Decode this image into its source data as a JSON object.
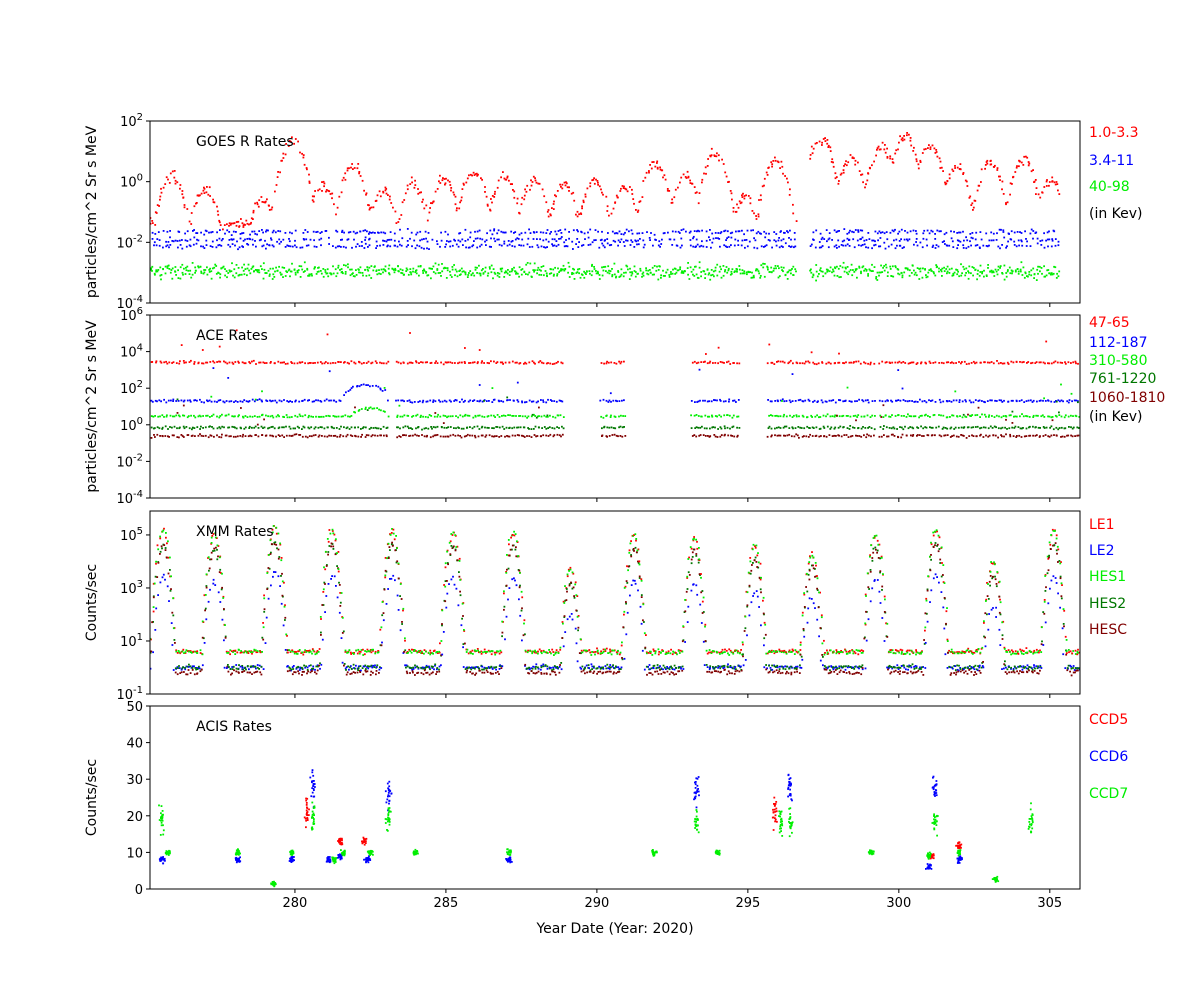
{
  "figure": {
    "xlabel": "Year Date (Year: 2020)",
    "xlim": [
      275.2,
      306.0
    ],
    "xticks": [
      280,
      285,
      290,
      295,
      300,
      305
    ]
  },
  "chart_data": [
    {
      "type": "scatter",
      "title": "GOES R Rates",
      "ylabel": "particles/cm^2 Sr s MeV",
      "yscale": "log",
      "ylim": [
        0.0001,
        100
      ],
      "yticks": [
        {
          "exp": "2",
          "v": 100
        },
        {
          "exp": "0",
          "v": 1
        },
        {
          "exp": "-2",
          "v": 0.01
        },
        {
          "exp": "-4",
          "v": 0.0001
        }
      ],
      "legend": [
        "1.0-3.3",
        "3.4-11",
        "40-98",
        "(in Kev)"
      ],
      "legend_colors": [
        "#ff0000",
        "#0000ff",
        "#00ee00",
        "#000000"
      ],
      "gaps": [
        [
          296.6,
          297.0
        ]
      ],
      "series": [
        {
          "name": "1.0-3.3",
          "color": "#ff0000",
          "peaks": [
            [
              275.9,
              1.5
            ],
            [
              277.0,
              0.6
            ],
            [
              278.9,
              0.25
            ],
            [
              279.9,
              25
            ],
            [
              280.9,
              0.7
            ],
            [
              281.9,
              3
            ],
            [
              282.9,
              0.5
            ],
            [
              283.9,
              0.8
            ],
            [
              284.9,
              1.2
            ],
            [
              285.9,
              2
            ],
            [
              286.9,
              1.5
            ],
            [
              287.9,
              1.2
            ],
            [
              288.9,
              0.8
            ],
            [
              289.9,
              1.0
            ],
            [
              290.9,
              0.7
            ],
            [
              291.9,
              4
            ],
            [
              292.9,
              1.5
            ],
            [
              293.9,
              8
            ],
            [
              294.9,
              0.3
            ],
            [
              295.9,
              5
            ],
            [
              297.4,
              25
            ],
            [
              298.4,
              6
            ],
            [
              299.4,
              15
            ],
            [
              300.2,
              30
            ],
            [
              301.0,
              15
            ],
            [
              301.9,
              3
            ],
            [
              303.0,
              4
            ],
            [
              304.1,
              5
            ],
            [
              305.0,
              1
            ]
          ],
          "baseline": 0.04
        },
        {
          "name": "3.4-11",
          "color": "#0000ff",
          "levels": [
            0.022,
            0.012,
            0.0075
          ]
        },
        {
          "name": "40-98",
          "color": "#00ee00",
          "levels": [
            0.0011
          ],
          "spread": 3
        }
      ]
    },
    {
      "type": "scatter",
      "title": "ACE Rates",
      "ylabel": "particles/cm^2 Sr s MeV",
      "yscale": "log",
      "ylim": [
        0.0001,
        1000000
      ],
      "yticks": [
        {
          "exp": "6",
          "v": 1000000
        },
        {
          "exp": "4",
          "v": 10000
        },
        {
          "exp": "2",
          "v": 100
        },
        {
          "exp": "0",
          "v": 1
        },
        {
          "exp": "-2",
          "v": 0.01
        },
        {
          "exp": "-4",
          "v": 0.0001
        }
      ],
      "legend": [
        "47-65",
        "112-187",
        "310-580",
        "761-1220",
        "1060-1810",
        "(in Kev)"
      ],
      "legend_colors": [
        "#ff0000",
        "#0000ff",
        "#00ee00",
        "#007700",
        "#800000",
        "#000000"
      ],
      "segments": [
        [
          275.2,
          283.1
        ],
        [
          283.3,
          288.9
        ],
        [
          290.1,
          290.9
        ],
        [
          293.1,
          294.7
        ],
        [
          295.6,
          299.2
        ],
        [
          299.3,
          301.2
        ],
        [
          301.3,
          306.0
        ]
      ],
      "series": [
        {
          "name": "47-65",
          "color": "#ff0000",
          "level": 2500
        },
        {
          "name": "112-187",
          "color": "#0000ff",
          "level": 20,
          "bump": [
            281.5,
            283.0,
            150
          ]
        },
        {
          "name": "310-580",
          "color": "#00ee00",
          "level": 3,
          "bump": [
            281.8,
            283.0,
            8
          ]
        },
        {
          "name": "761-1220",
          "color": "#007700",
          "level": 0.7
        },
        {
          "name": "1060-1810",
          "color": "#800000",
          "level": 0.25
        }
      ]
    },
    {
      "type": "scatter",
      "title": "XMM Rates",
      "ylabel": "Counts/sec",
      "yscale": "log",
      "ylim": [
        0.1,
        800000
      ],
      "yticks": [
        {
          "exp": "5",
          "v": 100000
        },
        {
          "exp": "3",
          "v": 1000
        },
        {
          "exp": "1",
          "v": 10
        },
        {
          "exp": "-1",
          "v": 0.1
        }
      ],
      "legend": [
        "LE1",
        "LE2",
        "HES1",
        "HES2",
        "HESC"
      ],
      "legend_colors": [
        "#ff0000",
        "#0000ff",
        "#00ee00",
        "#007700",
        "#800000"
      ],
      "perigees": [
        [
          275.6,
          150000
        ],
        [
          277.3,
          100000
        ],
        [
          279.3,
          200000
        ],
        [
          281.2,
          150000
        ],
        [
          283.2,
          150000
        ],
        [
          285.2,
          120000
        ],
        [
          287.2,
          120000
        ],
        [
          289.1,
          5000
        ],
        [
          291.2,
          100000
        ],
        [
          293.2,
          80000
        ],
        [
          295.2,
          40000
        ],
        [
          297.1,
          20000
        ],
        [
          299.2,
          100000
        ],
        [
          301.2,
          150000
        ],
        [
          303.1,
          10000
        ],
        [
          305.1,
          150000
        ]
      ],
      "series": [
        {
          "name": "LE1",
          "color": "#ff0000",
          "level": 4
        },
        {
          "name": "LE2",
          "color": "#0000ff",
          "level": 1
        },
        {
          "name": "HES1",
          "color": "#00ee00",
          "level": 3.8
        },
        {
          "name": "HES2",
          "color": "#007700",
          "level": 1.0
        },
        {
          "name": "HESC",
          "color": "#800000",
          "level": 0.65
        }
      ]
    },
    {
      "type": "scatter",
      "title": "ACIS Rates",
      "ylabel": "Counts/sec",
      "yscale": "linear",
      "ylim": [
        0,
        50
      ],
      "yticks": [
        {
          "label": "0",
          "v": 0
        },
        {
          "label": "10",
          "v": 10
        },
        {
          "label": "20",
          "v": 20
        },
        {
          "label": "30",
          "v": 30
        },
        {
          "label": "40",
          "v": 40
        },
        {
          "label": "50",
          "v": 50
        }
      ],
      "legend": [
        "CCD5",
        "CCD6",
        "CCD7"
      ],
      "legend_colors": [
        "#ff0000",
        "#0000ff",
        "#00ee00"
      ],
      "series": [
        {
          "name": "CCD5",
          "color": "#ff0000",
          "clusters": [
            [
              280.4,
              21
            ],
            [
              281.5,
              13
            ],
            [
              282.3,
              13
            ],
            [
              295.9,
              21
            ],
            [
              301.1,
              9
            ],
            [
              302.0,
              12
            ]
          ]
        },
        {
          "name": "CCD6",
          "color": "#0000ff",
          "clusters": [
            [
              275.6,
              8
            ],
            [
              278.1,
              8
            ],
            [
              279.9,
              8
            ],
            [
              280.6,
              28
            ],
            [
              281.1,
              8
            ],
            [
              281.5,
              9
            ],
            [
              282.4,
              8
            ],
            [
              283.1,
              26
            ],
            [
              287.1,
              8
            ],
            [
              293.3,
              27
            ],
            [
              296.4,
              27
            ],
            [
              301.2,
              28
            ],
            [
              301.0,
              6
            ],
            [
              302.0,
              8
            ]
          ]
        },
        {
          "name": "CCD7",
          "color": "#00ee00",
          "clusters": [
            [
              275.6,
              19
            ],
            [
              275.8,
              10
            ],
            [
              278.1,
              10
            ],
            [
              279.3,
              1.5
            ],
            [
              279.9,
              10
            ],
            [
              280.6,
              19
            ],
            [
              281.3,
              8
            ],
            [
              281.6,
              10
            ],
            [
              282.5,
              10
            ],
            [
              283.1,
              19
            ],
            [
              284.0,
              10
            ],
            [
              287.1,
              10
            ],
            [
              291.9,
              10
            ],
            [
              293.3,
              19
            ],
            [
              294.0,
              10
            ],
            [
              296.1,
              19
            ],
            [
              296.4,
              19
            ],
            [
              299.1,
              10
            ],
            [
              301.2,
              19
            ],
            [
              301.0,
              9
            ],
            [
              302.0,
              10
            ],
            [
              303.2,
              2.5
            ],
            [
              304.4,
              19
            ]
          ]
        }
      ]
    }
  ]
}
